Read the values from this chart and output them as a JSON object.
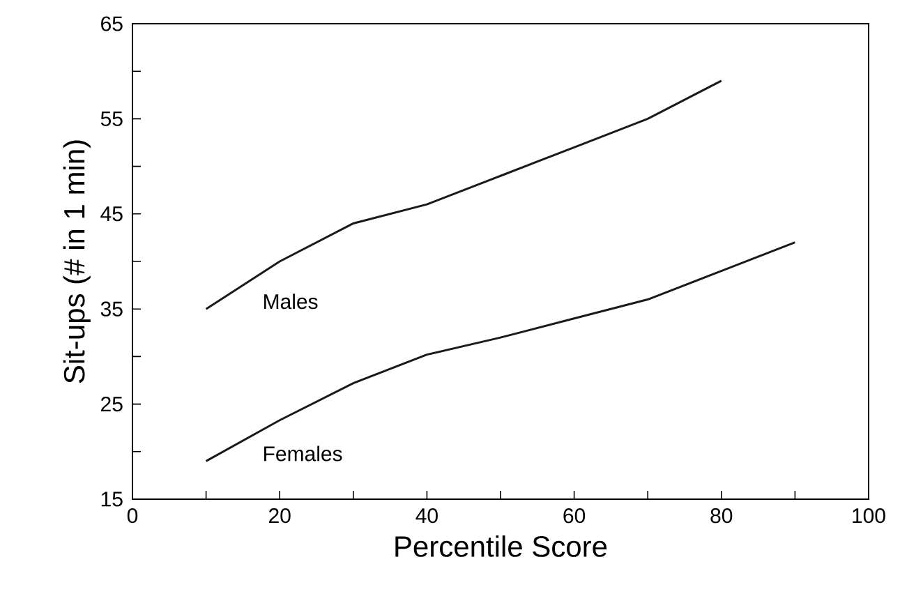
{
  "chart_data": {
    "type": "line",
    "xlabel": "Percentile Score",
    "ylabel": "Sit-ups (# in 1 min)",
    "xlim": [
      0,
      100
    ],
    "ylim": [
      15,
      65
    ],
    "xticks": [
      0,
      {
        "value": 10,
        "label": null
      },
      20,
      {
        "value": 30,
        "label": null
      },
      40,
      {
        "value": 50,
        "label": null
      },
      60,
      {
        "value": 70,
        "label": null
      },
      80,
      {
        "value": 90,
        "label": null
      },
      100
    ],
    "yticks": [
      15,
      {
        "value": 20,
        "label": null
      },
      25,
      {
        "value": 30,
        "label": null
      },
      35,
      {
        "value": 40,
        "label": null
      },
      45,
      {
        "value": 50,
        "label": null
      },
      55,
      {
        "value": 60,
        "label": null
      },
      65
    ],
    "grid": false,
    "legend": false,
    "marker": "none",
    "line_style": "solid",
    "series": [
      {
        "name": "Males",
        "color": "#1a1a1a",
        "x": [
          10,
          20,
          30,
          40,
          50,
          60,
          70,
          80
        ],
        "values": [
          35,
          40,
          44,
          46,
          49,
          52,
          55,
          59
        ]
      },
      {
        "name": "Females",
        "color": "#1a1a1a",
        "x": [
          10,
          20,
          30,
          40,
          50,
          60,
          70,
          80,
          90
        ],
        "values": [
          19,
          23.3,
          27.2,
          30.2,
          32,
          34,
          36,
          39,
          42
        ]
      }
    ]
  }
}
